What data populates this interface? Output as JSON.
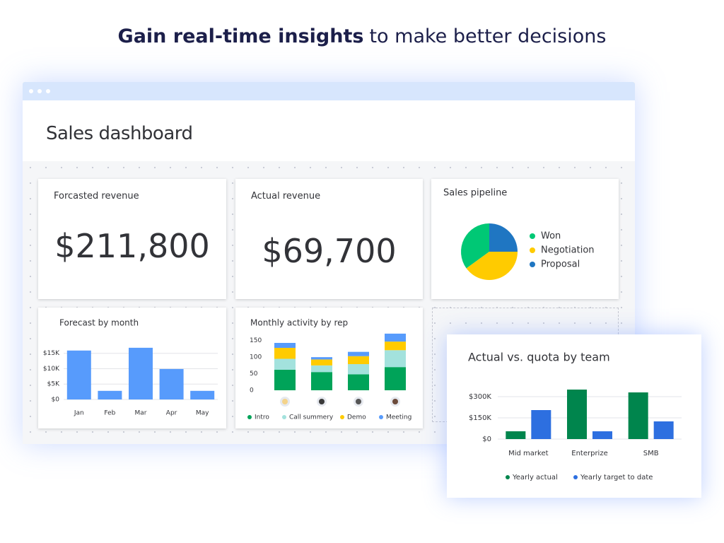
{
  "headline": {
    "bold": "Gain real-time insights",
    "rest": "to make better decisions"
  },
  "dashboard": {
    "title": "Sales dashboard",
    "cards": [
      {
        "label": "Forcasted revenue",
        "value": "$211,800"
      },
      {
        "label": "Actual revenue",
        "value": "$69,700"
      }
    ]
  },
  "chart_data": [
    {
      "type": "pie",
      "title": "Sales pipeline",
      "categories": [
        "Won",
        "Negotiation",
        "Proposal"
      ],
      "values": [
        35,
        40,
        25
      ],
      "colors": [
        "#00c875",
        "#ffcb00",
        "#1f76c2"
      ],
      "legend": "right"
    },
    {
      "type": "bar",
      "title": "Forecast by month",
      "categories": [
        "Jan",
        "Feb",
        "Mar",
        "Apr",
        "May"
      ],
      "values": [
        15900,
        2800,
        16800,
        9900,
        2800
      ],
      "color": "#579bfc",
      "ylim": [
        0,
        17000
      ],
      "yticks": [
        {
          "value": 0,
          "label": "$0"
        },
        {
          "value": 5000,
          "label": "$5K"
        },
        {
          "value": 10000,
          "label": "$10K"
        },
        {
          "value": 15000,
          "label": "$15K"
        }
      ],
      "grid": true
    },
    {
      "type": "stacked_bar",
      "title": "Monthly activity by rep",
      "categories": [
        null,
        null,
        null,
        null
      ],
      "series": [
        {
          "name": "Intro",
          "color": "#00a359",
          "values": [
            62,
            55,
            48,
            70
          ]
        },
        {
          "name": "Call summery",
          "color": "#a3e2dd",
          "values": [
            33,
            20,
            31,
            51
          ]
        },
        {
          "name": "Demo",
          "color": "#ffcb00",
          "values": [
            33,
            18,
            24,
            26
          ]
        },
        {
          "name": "Meeting",
          "color": "#579bfc",
          "values": [
            15,
            7,
            13,
            24
          ]
        }
      ],
      "ylim": [
        0,
        175
      ],
      "yticks": [
        0,
        50,
        100,
        150
      ],
      "grid": false,
      "legend": "bottom"
    },
    {
      "type": "grouped_bar",
      "title": "Actual vs. quota by team",
      "categories": [
        "Mid market",
        "Enterprize",
        "SMB"
      ],
      "series": [
        {
          "name": "Yearly actual",
          "color": "#00854d",
          "values": [
            55000,
            350000,
            330000
          ]
        },
        {
          "name": "Yearly target to date",
          "color": "#2d6fe0",
          "values": [
            205000,
            55000,
            125000
          ]
        }
      ],
      "ylim": [
        0,
        370000
      ],
      "yticks": [
        {
          "value": 0,
          "label": "$0"
        },
        {
          "value": 150000,
          "label": "$150K"
        },
        {
          "value": 300000,
          "label": "$300K"
        }
      ],
      "grid": true,
      "legend": "bottom"
    }
  ]
}
